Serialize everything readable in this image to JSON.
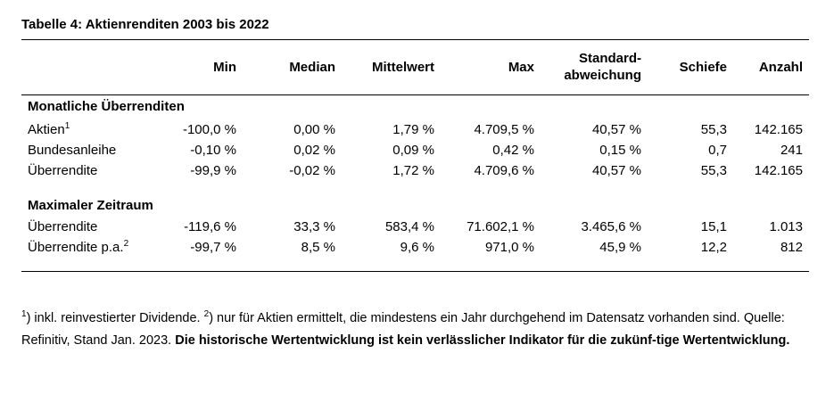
{
  "title": "Tabelle 4: Aktienrenditen 2003 bis 2022",
  "columns": {
    "min": "Min",
    "median": "Median",
    "mittelwert": "Mittelwert",
    "max": "Max",
    "std_line1": "Standard-",
    "std_line2": "abweichung",
    "schiefe": "Schiefe",
    "anzahl": "Anzahl"
  },
  "sections": [
    {
      "heading": "Monatliche Überrenditen",
      "rows": [
        {
          "label": "Aktien",
          "footnote": "1",
          "min": "-100,0 %",
          "median": "0,00 %",
          "mittelwert": "1,79 %",
          "max": "4.709,5 %",
          "std": "40,57 %",
          "schiefe": "55,3",
          "anzahl": "142.165"
        },
        {
          "label": "Bundesanleihe",
          "footnote": "",
          "min": "-0,10 %",
          "median": "0,02 %",
          "mittelwert": "0,09 %",
          "max": "0,42 %",
          "std": "0,15 %",
          "schiefe": "0,7",
          "anzahl": "241"
        },
        {
          "label": "Überrendite",
          "footnote": "",
          "min": "-99,9 %",
          "median": "-0,02 %",
          "mittelwert": "1,72 %",
          "max": "4.709,6 %",
          "std": "40,57 %",
          "schiefe": "55,3",
          "anzahl": "142.165"
        }
      ]
    },
    {
      "heading": "Maximaler Zeitraum",
      "rows": [
        {
          "label": "Überrendite",
          "footnote": "",
          "min": "-119,6 %",
          "median": "33,3 %",
          "mittelwert": "583,4 %",
          "max": "71.602,1 %",
          "std": "3.465,6 %",
          "schiefe": "15,1",
          "anzahl": "1.013"
        },
        {
          "label": "Überrendite p.a.",
          "footnote": "2",
          "min": "-99,7 %",
          "median": "8,5 %",
          "mittelwert": "9,6 %",
          "max": "971,0 %",
          "std": "45,9 %",
          "schiefe": "12,2",
          "anzahl": "812"
        }
      ]
    }
  ],
  "notes": {
    "fn1_mark": "1",
    "fn1_text": ") inkl. reinvestierter Dividende. ",
    "fn2_mark": "2",
    "fn2_text": ") nur für Aktien ermittelt, die mindestens ein Jahr durchgehend im Datensatz vorhanden sind. Quelle: Refinitiv, Stand Jan. 2023. ",
    "disclaimer": "Die historische Wertentwicklung ist kein verlässlicher Indikator für die zukünf-tige Wertentwicklung."
  }
}
